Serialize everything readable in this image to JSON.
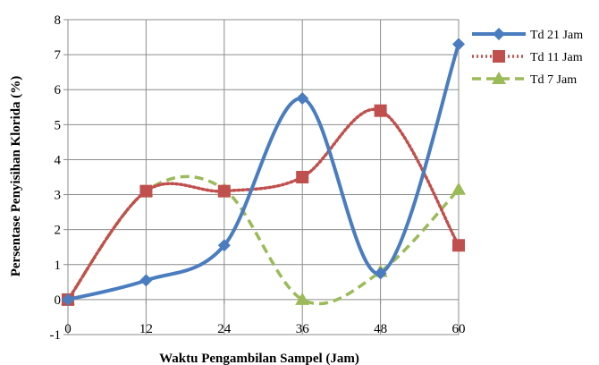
{
  "chart_data": {
    "type": "line",
    "x": [
      0,
      12,
      24,
      36,
      48,
      60
    ],
    "series": [
      {
        "name": "Td 21 Jam",
        "values": [
          0.0,
          0.55,
          1.55,
          5.75,
          0.75,
          7.3
        ],
        "color": "#4a7cc0",
        "marker": "diamond",
        "dash": "solid"
      },
      {
        "name": "Td 11 Jam",
        "values": [
          0.0,
          3.1,
          3.1,
          3.5,
          5.4,
          1.55
        ],
        "color": "#c0504d",
        "marker": "square",
        "dash": "dotted"
      },
      {
        "name": "Td 7 Jam",
        "values": [
          0.0,
          3.1,
          3.15,
          0.0,
          0.8,
          3.15
        ],
        "color": "#9bbb59",
        "marker": "triangle",
        "dash": "dashed"
      }
    ],
    "xlabel": "Waktu Pengambilan Sampel (Jam)",
    "ylabel": "Persentase Penyisihan Klorida (%)",
    "xticks": [
      "0",
      "12",
      "24",
      "36",
      "48",
      "60"
    ],
    "yticks": [
      "-1",
      "0",
      "1",
      "2",
      "3",
      "4",
      "5",
      "6",
      "7",
      "8"
    ],
    "xlim": [
      0,
      60
    ],
    "ylim": [
      -1,
      8
    ],
    "grid": "both",
    "legend_position": "right"
  }
}
